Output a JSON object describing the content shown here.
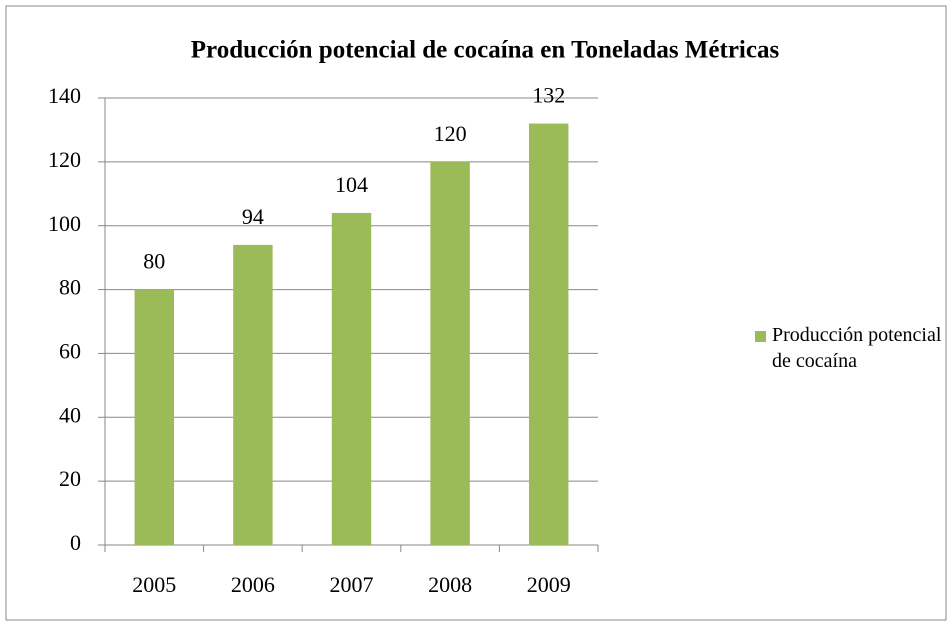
{
  "chart_data": {
    "type": "bar",
    "title": "Producción potencial de cocaína en Toneladas Métricas",
    "categories": [
      "2005",
      "2006",
      "2007",
      "2008",
      "2009"
    ],
    "series": [
      {
        "name": "Producción potencial de cocaína",
        "color": "#9bbb59",
        "values": [
          80,
          94,
          104,
          120,
          132
        ]
      }
    ],
    "ylim": [
      0,
      140
    ],
    "yticks": [
      0,
      20,
      40,
      60,
      80,
      100,
      120,
      140
    ],
    "grid": true,
    "legend": "right"
  }
}
